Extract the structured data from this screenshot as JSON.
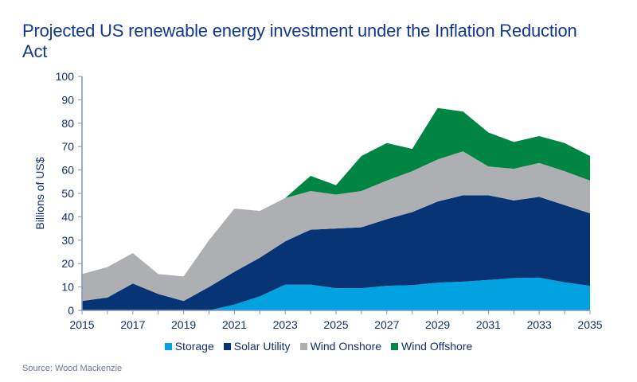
{
  "chart_data": {
    "type": "area",
    "stacked": true,
    "title": "Projected US renewable energy investment under the Inflation Reduction Act",
    "xlabel": "",
    "ylabel": "Billions of US$",
    "ylim": [
      0,
      100
    ],
    "yticks": [
      0,
      10,
      20,
      30,
      40,
      50,
      60,
      70,
      80,
      90,
      100
    ],
    "x": [
      2015,
      2016,
      2017,
      2018,
      2019,
      2020,
      2021,
      2022,
      2023,
      2024,
      2025,
      2026,
      2027,
      2028,
      2029,
      2030,
      2031,
      2032,
      2033,
      2034,
      2035
    ],
    "xtick_labels": [
      "2015",
      "2017",
      "2019",
      "2021",
      "2023",
      "2025",
      "2027",
      "2029",
      "2031",
      "2033",
      "2035"
    ],
    "grid": false,
    "legend_position": "bottom",
    "series": [
      {
        "name": "Storage",
        "color": "#00A3E0",
        "values": [
          0,
          0,
          0,
          0,
          0,
          0,
          2.5,
          6,
          11,
          11,
          9.5,
          9.5,
          10.5,
          10.8,
          11.8,
          12.3,
          13,
          13.8,
          14,
          12,
          10.5
        ]
      },
      {
        "name": "Solar Utility",
        "color": "#063474",
        "values": [
          4,
          5.5,
          11.5,
          7,
          4,
          10,
          14,
          16.5,
          18.5,
          23.5,
          25.5,
          26,
          28.5,
          31.2,
          34.7,
          36.9,
          36.2,
          33.2,
          34.5,
          33,
          31
        ]
      },
      {
        "name": "Wind Onshore",
        "color": "#ADAFB2",
        "values": [
          11.5,
          13,
          13,
          8.5,
          10.5,
          20,
          27,
          20,
          18.5,
          16.5,
          14.5,
          15.5,
          16.5,
          17.5,
          18,
          18.8,
          12.3,
          13.5,
          14.5,
          14.5,
          14
        ]
      },
      {
        "name": "Wind Offshore",
        "color": "#008542",
        "values": [
          0,
          0,
          0,
          0,
          0,
          0,
          0,
          0,
          0,
          6.5,
          4,
          15,
          16,
          9.5,
          22,
          17,
          14.5,
          11.5,
          11.5,
          12,
          10.5
        ]
      }
    ]
  },
  "source": "Source: Wood Mackenzie"
}
